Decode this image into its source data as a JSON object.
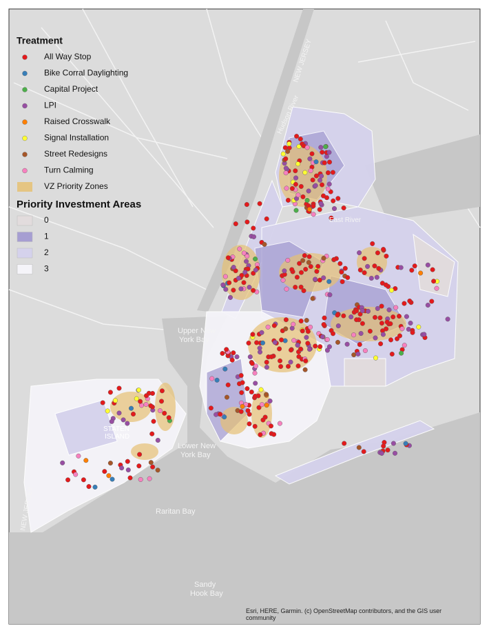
{
  "legend": {
    "treatment": {
      "title": "Treatment",
      "items": [
        {
          "label": "All Way Stop",
          "color": "#e41a1c"
        },
        {
          "label": "Bike Corral Daylighting",
          "color": "#377eb8"
        },
        {
          "label": "Capital Project",
          "color": "#4daf4a"
        },
        {
          "label": "LPI",
          "color": "#984ea3"
        },
        {
          "label": "Raised Crosswalk",
          "color": "#ff7f00"
        },
        {
          "label": "Signal Installation",
          "color": "#ffff33"
        },
        {
          "label": "Street Redesigns",
          "color": "#a65628"
        },
        {
          "label": "Turn Calming",
          "color": "#f781bf"
        },
        {
          "label": "VZ Priority Zones",
          "color": "#e6c173"
        }
      ]
    },
    "priority": {
      "title": "Priority Investment Areas",
      "items": [
        {
          "label": "0",
          "color": "#e2dcdd"
        },
        {
          "label": "1",
          "color": "#a69ed2"
        },
        {
          "label": "2",
          "color": "#d5d2ec"
        },
        {
          "label": "3",
          "color": "#f5f4f9"
        }
      ]
    }
  },
  "map_labels": {
    "new_jersey_top": [
      "NEW JERSEY"
    ],
    "hudson": [
      "Hudson River"
    ],
    "east_river": [
      "East River"
    ],
    "upper_bay": [
      "Upper New",
      "York Bay"
    ],
    "staten": [
      "STATEN",
      "ISLAND"
    ],
    "lower_bay": [
      "Lower New",
      "York Bay"
    ],
    "raritan": [
      "Raritan Bay"
    ],
    "sandy_hook": [
      "Sandy",
      "Hook Bay"
    ],
    "new_jersey_bottom": [
      "NEW JERSEY"
    ]
  },
  "attribution": "Esri, HERE, Garmin. (c) OpenStreetMap contributors, and the GIS user community"
}
